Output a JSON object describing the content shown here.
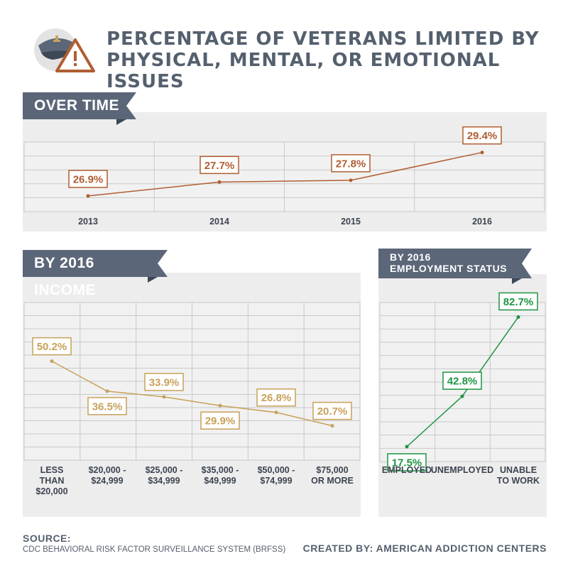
{
  "title": "PERCENTAGE OF VETERANS LIMITED BY PHYSICAL, MENTAL, OR EMOTIONAL ISSUES",
  "icon": "veteran-cap-warning-icon",
  "colors": {
    "header": "#55606e",
    "ribbon": "#5b6778",
    "time": "#b05e32",
    "income": "#c8a15a",
    "employment": "#1e9442",
    "panel": "#ededed",
    "grid": "#c9c9c9"
  },
  "chart_data": [
    {
      "id": "over_time",
      "type": "line",
      "title": "OVER TIME",
      "categories": [
        "2013",
        "2014",
        "2015",
        "2016"
      ],
      "values": [
        26.9,
        27.7,
        27.8,
        29.4
      ],
      "labels": [
        "26.9%",
        "27.7%",
        "27.8%",
        "29.4%"
      ],
      "ylim": [
        26.0,
        30.0
      ],
      "grid": true
    },
    {
      "id": "income",
      "type": "line",
      "title": "BY 2016 INCOME",
      "categories": [
        [
          "LESS",
          "THAN",
          "$20,000"
        ],
        [
          "$20,000 -",
          "$24,999"
        ],
        [
          "$25,000 -",
          "$34,999"
        ],
        [
          "$35,000 -",
          "$49,999"
        ],
        [
          "$50,000 -",
          "$74,999"
        ],
        [
          "$75,000",
          "OR MORE"
        ]
      ],
      "values": [
        50.2,
        36.5,
        33.9,
        29.9,
        26.8,
        20.7
      ],
      "labels": [
        "50.2%",
        "36.5%",
        "33.9%",
        "29.9%",
        "26.8%",
        "20.7%"
      ],
      "ylim": [
        5,
        77
      ],
      "grid": true
    },
    {
      "id": "employment",
      "type": "line",
      "title": [
        "BY 2016",
        "EMPLOYMENT STATUS"
      ],
      "categories": [
        [
          "EMPLOYED"
        ],
        [
          "UNEMPLOYED"
        ],
        [
          "UNABLE",
          "TO WORK"
        ]
      ],
      "values": [
        17.5,
        42.8,
        82.7
      ],
      "labels": [
        "17.5%",
        "42.8%",
        "82.7%"
      ],
      "ylim": [
        10,
        90
      ],
      "grid": true
    }
  ],
  "footer": {
    "source_label": "SOURCE:",
    "source_text": "CDC BEHAVIORAL RISK FACTOR SURVEILLANCE SYSTEM (BRFSS)",
    "credit": "CREATED BY: AMERICAN ADDICTION CENTERS"
  }
}
